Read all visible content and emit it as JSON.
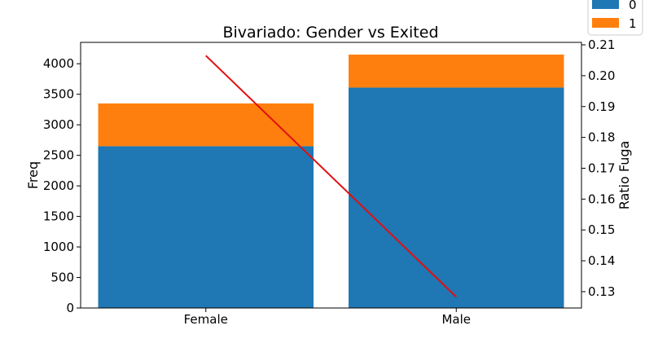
{
  "chart_data": {
    "type": "bar",
    "stacked": true,
    "title": "Bivariado: Gender vs Exited",
    "xlabel": "",
    "ylabel": "Freq",
    "y2label": "Ratio Fuga",
    "categories": [
      "Female",
      "Male"
    ],
    "ylim": [
      0,
      4350
    ],
    "yticks": [
      0,
      500,
      1000,
      1500,
      2000,
      2500,
      3000,
      3500,
      4000
    ],
    "y2lim": [
      0.1247,
      0.2108
    ],
    "y2ticks": [
      0.13,
      0.14,
      0.15,
      0.16,
      0.17,
      0.18,
      0.19,
      0.2,
      0.21
    ],
    "y2tick_labels": [
      "0.13",
      "0.14",
      "0.15",
      "0.16",
      "0.17",
      "0.18",
      "0.19",
      "0.20",
      "0.21"
    ],
    "series": [
      {
        "name": "0",
        "values": [
          2650,
          3610
        ],
        "color": "#1f77b4"
      },
      {
        "name": "1",
        "values": [
          700,
          540
        ],
        "color": "#ff7f0e"
      }
    ],
    "line": {
      "values": [
        0.2065,
        0.1283
      ],
      "color": "#e01010",
      "axis": "secondary"
    },
    "legend_placement": "top-right",
    "grid": false
  }
}
